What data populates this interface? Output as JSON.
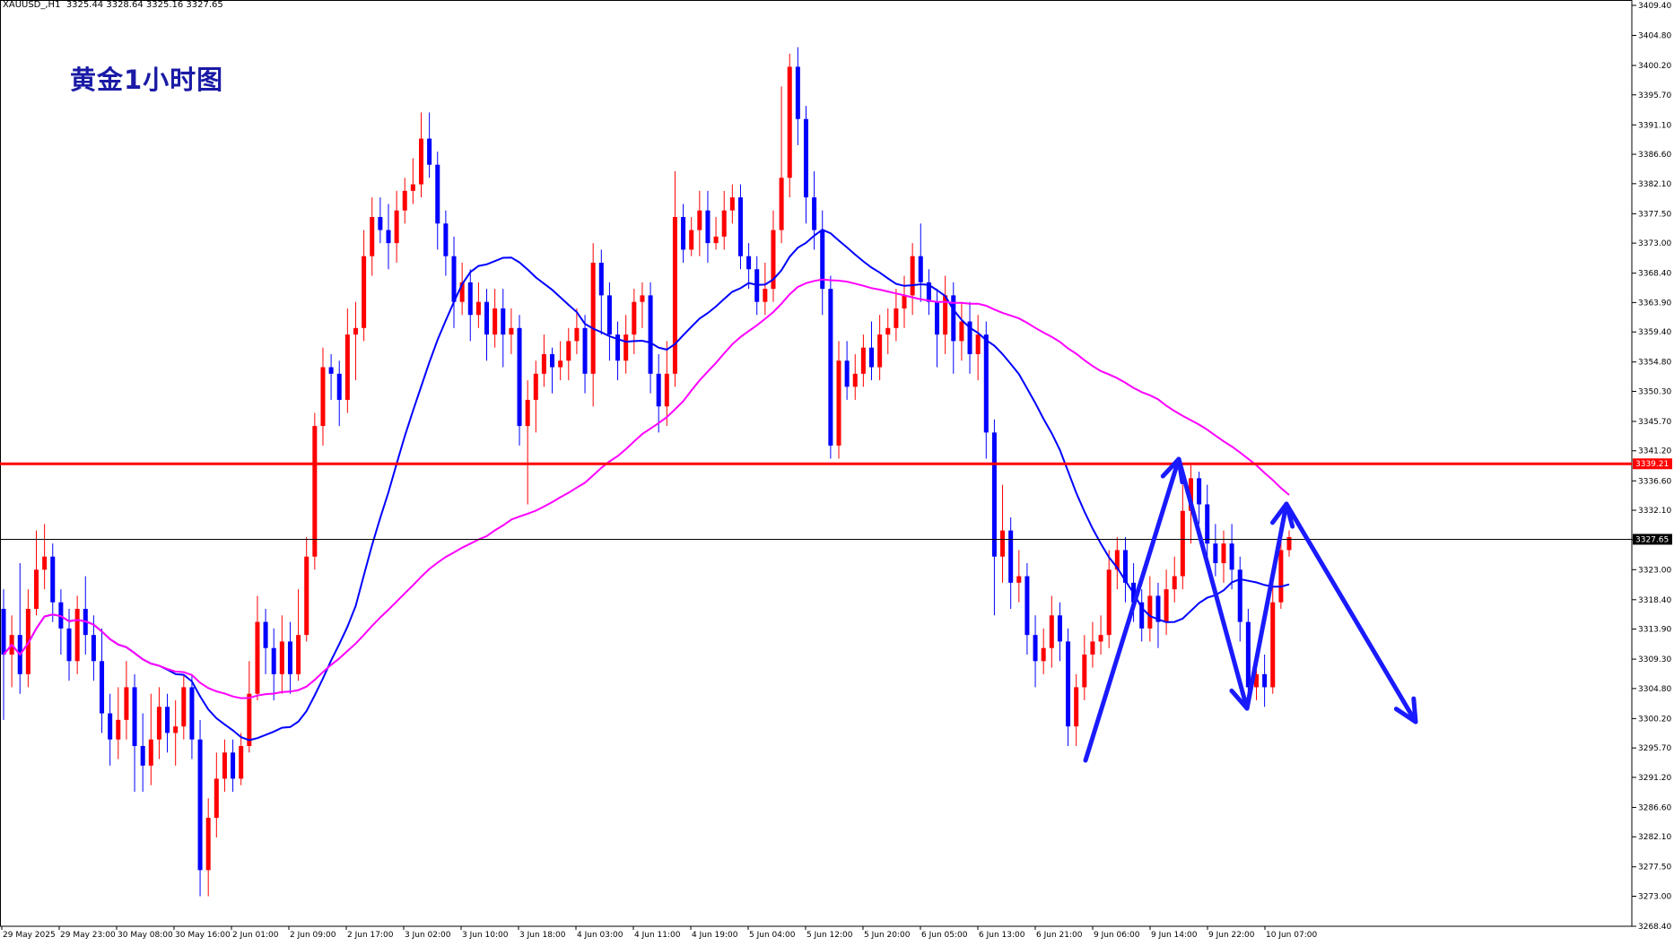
{
  "header": {
    "symbol": "XAUUSD_,H1",
    "ohlc": "3325.44 3328.64 3325.16 3327.65"
  },
  "title": "黄金1小时图",
  "colors": {
    "bull": "#ff0000",
    "bear": "#0000ff",
    "ma_fast": "#0000ff",
    "ma_slow": "#ff00ff",
    "resistance": "#ff0000",
    "current": "#000000",
    "arrows": "#1a1aff",
    "price_tag_bg": "#ff0000",
    "current_tag_bg": "#000000"
  },
  "chart_data": {
    "type": "candlestick",
    "y_ticks": [
      "3409.40",
      "3404.80",
      "3400.20",
      "3395.70",
      "3391.10",
      "3386.60",
      "3382.10",
      "3377.50",
      "3373.00",
      "3368.40",
      "3363.90",
      "3359.40",
      "3354.80",
      "3350.30",
      "3345.70",
      "3341.20",
      "3336.60",
      "3332.10",
      "3327.60",
      "3323.00",
      "3318.40",
      "3313.90",
      "3309.30",
      "3304.80",
      "3300.20",
      "3295.70",
      "3291.20",
      "3286.60",
      "3282.10",
      "3277.50",
      "3273.00",
      "3268.40"
    ],
    "x_ticks": [
      "29 May 2025",
      "29 May 23:00",
      "30 May 08:00",
      "30 May 16:00",
      "2 Jun 01:00",
      "2 Jun 09:00",
      "2 Jun 17:00",
      "3 Jun 02:00",
      "3 Jun 10:00",
      "3 Jun 18:00",
      "4 Jun 03:00",
      "4 Jun 11:00",
      "4 Jun 19:00",
      "5 Jun 04:00",
      "5 Jun 12:00",
      "5 Jun 20:00",
      "6 Jun 05:00",
      "6 Jun 13:00",
      "6 Jun 21:00",
      "9 Jun 06:00",
      "9 Jun 14:00",
      "9 Jun 22:00",
      "10 Jun 07:00"
    ],
    "ylim": [
      3268.4,
      3409.4
    ],
    "resistance_level": 3339.21,
    "resistance_label": "3339.21",
    "current_price": 3327.65,
    "current_label": "3327.65",
    "candles": [
      [
        3317,
        3310,
        3320,
        3300
      ],
      [
        3310,
        3313,
        3316,
        3305
      ],
      [
        3313,
        3307,
        3324,
        3304
      ],
      [
        3307,
        3317,
        3320,
        3305
      ],
      [
        3317,
        3323,
        3329,
        3316
      ],
      [
        3323,
        3325,
        3330,
        3320
      ],
      [
        3325,
        3318,
        3327,
        3315
      ],
      [
        3318,
        3314,
        3320,
        3310
      ],
      [
        3314,
        3309,
        3317,
        3306
      ],
      [
        3309,
        3317,
        3319,
        3307
      ],
      [
        3317,
        3313,
        3322,
        3310
      ],
      [
        3313,
        3309,
        3316,
        3306
      ],
      [
        3309,
        3301,
        3314,
        3298
      ],
      [
        3301,
        3297,
        3304,
        3293
      ],
      [
        3297,
        3300,
        3305,
        3294
      ],
      [
        3300,
        3305,
        3309,
        3297
      ],
      [
        3305,
        3296,
        3307,
        3289
      ],
      [
        3296,
        3293,
        3301,
        3289
      ],
      [
        3293,
        3297,
        3304,
        3290
      ],
      [
        3297,
        3302,
        3305,
        3294
      ],
      [
        3302,
        3298,
        3304,
        3295
      ],
      [
        3298,
        3299,
        3303,
        3293
      ],
      [
        3299,
        3305,
        3307,
        3297
      ],
      [
        3305,
        3297,
        3307,
        3294
      ],
      [
        3297,
        3277,
        3300,
        3273
      ],
      [
        3277,
        3285,
        3288,
        3273
      ],
      [
        3285,
        3291,
        3295,
        3282
      ],
      [
        3291,
        3295,
        3297,
        3289
      ],
      [
        3295,
        3291,
        3297,
        3289
      ],
      [
        3291,
        3296,
        3298,
        3290
      ],
      [
        3296,
        3304,
        3309,
        3295
      ],
      [
        3304,
        3315,
        3319,
        3303
      ],
      [
        3315,
        3311,
        3317,
        3307
      ],
      [
        3311,
        3307,
        3314,
        3303
      ],
      [
        3307,
        3312,
        3316,
        3304
      ],
      [
        3312,
        3307,
        3315,
        3304
      ],
      [
        3307,
        3313,
        3320,
        3306
      ],
      [
        3313,
        3325,
        3328,
        3312
      ],
      [
        3325,
        3345,
        3347,
        3323
      ],
      [
        3345,
        3354,
        3357,
        3342
      ],
      [
        3354,
        3353,
        3356,
        3349
      ],
      [
        3353,
        3349,
        3355,
        3345
      ],
      [
        3349,
        3359,
        3363,
        3347
      ],
      [
        3359,
        3360,
        3364,
        3352
      ],
      [
        3360,
        3371,
        3375,
        3358
      ],
      [
        3371,
        3377,
        3380,
        3368
      ],
      [
        3377,
        3375,
        3380,
        3373
      ],
      [
        3375,
        3373,
        3379,
        3369
      ],
      [
        3373,
        3378,
        3381,
        3370
      ],
      [
        3378,
        3381,
        3383,
        3376
      ],
      [
        3381,
        3382,
        3386,
        3379
      ],
      [
        3382,
        3389,
        3393,
        3380
      ],
      [
        3389,
        3385,
        3393,
        3383
      ],
      [
        3385,
        3376,
        3387,
        3372
      ],
      [
        3376,
        3371,
        3378,
        3368
      ],
      [
        3371,
        3364,
        3374,
        3360
      ],
      [
        3364,
        3367,
        3370,
        3362
      ],
      [
        3367,
        3362,
        3369,
        3358
      ],
      [
        3362,
        3364,
        3367,
        3360
      ],
      [
        3364,
        3359,
        3366,
        3355
      ],
      [
        3359,
        3363,
        3366,
        3357
      ],
      [
        3363,
        3359,
        3366,
        3354
      ],
      [
        3359,
        3360,
        3363,
        3356
      ],
      [
        3360,
        3345,
        3362,
        3342
      ],
      [
        3345,
        3349,
        3352,
        3333
      ],
      [
        3349,
        3353,
        3355,
        3344
      ],
      [
        3353,
        3356,
        3359,
        3351
      ],
      [
        3356,
        3354,
        3357,
        3350
      ],
      [
        3354,
        3355,
        3358,
        3352
      ],
      [
        3355,
        3358,
        3360,
        3352
      ],
      [
        3358,
        3360,
        3363,
        3356
      ],
      [
        3360,
        3353,
        3362,
        3350
      ],
      [
        3353,
        3370,
        3373,
        3348
      ],
      [
        3370,
        3365,
        3372,
        3359
      ],
      [
        3365,
        3359,
        3367,
        3355
      ],
      [
        3359,
        3355,
        3361,
        3352
      ],
      [
        3355,
        3359,
        3362,
        3353
      ],
      [
        3359,
        3364,
        3366,
        3356
      ],
      [
        3364,
        3365,
        3367,
        3360
      ],
      [
        3365,
        3353,
        3367,
        3350
      ],
      [
        3353,
        3348,
        3356,
        3344
      ],
      [
        3348,
        3353,
        3358,
        3345
      ],
      [
        3353,
        3377,
        3384,
        3351
      ],
      [
        3377,
        3372,
        3379,
        3370
      ],
      [
        3372,
        3375,
        3377,
        3371
      ],
      [
        3375,
        3378,
        3381,
        3371
      ],
      [
        3378,
        3373,
        3381,
        3370
      ],
      [
        3373,
        3374,
        3377,
        3372
      ],
      [
        3374,
        3378,
        3381,
        3372
      ],
      [
        3378,
        3380,
        3382,
        3376
      ],
      [
        3380,
        3371,
        3382,
        3369
      ],
      [
        3371,
        3369,
        3373,
        3366
      ],
      [
        3369,
        3364,
        3371,
        3362
      ],
      [
        3364,
        3366,
        3370,
        3362
      ],
      [
        3366,
        3375,
        3378,
        3364
      ],
      [
        3375,
        3383,
        3397,
        3373
      ],
      [
        3383,
        3400,
        3402,
        3380
      ],
      [
        3400,
        3392,
        3403,
        3388
      ],
      [
        3392,
        3380,
        3394,
        3376
      ],
      [
        3380,
        3375,
        3384,
        3372
      ],
      [
        3375,
        3366,
        3378,
        3362
      ],
      [
        3366,
        3342,
        3368,
        3340
      ],
      [
        3342,
        3355,
        3358,
        3340
      ],
      [
        3355,
        3351,
        3358,
        3349
      ],
      [
        3351,
        3353,
        3356,
        3349
      ],
      [
        3353,
        3357,
        3359,
        3351
      ],
      [
        3357,
        3354,
        3361,
        3352
      ],
      [
        3354,
        3359,
        3362,
        3352
      ],
      [
        3359,
        3360,
        3363,
        3356
      ],
      [
        3360,
        3363,
        3366,
        3358
      ],
      [
        3363,
        3365,
        3368,
        3360
      ],
      [
        3365,
        3371,
        3373,
        3362
      ],
      [
        3371,
        3367,
        3376,
        3364
      ],
      [
        3367,
        3364,
        3369,
        3362
      ],
      [
        3364,
        3359,
        3366,
        3354
      ],
      [
        3359,
        3365,
        3368,
        3356
      ],
      [
        3365,
        3358,
        3367,
        3353
      ],
      [
        3358,
        3361,
        3364,
        3355
      ],
      [
        3361,
        3356,
        3364,
        3353
      ],
      [
        3356,
        3359,
        3362,
        3352
      ],
      [
        3359,
        3344,
        3361,
        3340
      ],
      [
        3344,
        3325,
        3346,
        3316
      ],
      [
        3325,
        3329,
        3336,
        3321
      ],
      [
        3329,
        3321,
        3331,
        3317
      ],
      [
        3321,
        3322,
        3326,
        3318
      ],
      [
        3322,
        3313,
        3324,
        3310
      ],
      [
        3313,
        3309,
        3316,
        3305
      ],
      [
        3309,
        3311,
        3314,
        3307
      ],
      [
        3311,
        3316,
        3319,
        3308
      ],
      [
        3316,
        3312,
        3318,
        3309
      ],
      [
        3312,
        3299,
        3314,
        3296
      ],
      [
        3299,
        3305,
        3307,
        3296
      ],
      [
        3305,
        3310,
        3313,
        3303
      ],
      [
        3310,
        3312,
        3315,
        3308
      ],
      [
        3312,
        3313,
        3316,
        3310
      ],
      [
        3313,
        3323,
        3326,
        3311
      ],
      [
        3323,
        3326,
        3328,
        3320
      ],
      [
        3326,
        3321,
        3328,
        3318
      ],
      [
        3321,
        3318,
        3324,
        3315
      ],
      [
        3318,
        3314,
        3320,
        3312
      ],
      [
        3314,
        3319,
        3322,
        3312
      ],
      [
        3319,
        3315,
        3321,
        3311
      ],
      [
        3315,
        3320,
        3323,
        3313
      ],
      [
        3320,
        3322,
        3325,
        3318
      ],
      [
        3322,
        3332,
        3336,
        3320
      ],
      [
        3332,
        3337,
        3339,
        3327
      ],
      [
        3337,
        3333,
        3338,
        3330
      ],
      [
        3333,
        3327,
        3336,
        3325
      ],
      [
        3327,
        3324,
        3330,
        3322
      ],
      [
        3324,
        3327,
        3329,
        3321
      ],
      [
        3327,
        3323,
        3330,
        3320
      ],
      [
        3323,
        3315,
        3325,
        3312
      ],
      [
        3315,
        3305,
        3317,
        3302
      ],
      [
        3305,
        3307,
        3310,
        3303
      ],
      [
        3307,
        3305,
        3310,
        3302
      ],
      [
        3305,
        3318,
        3321,
        3304
      ],
      [
        3318,
        3326,
        3330,
        3317
      ],
      [
        3326,
        3328,
        3329,
        3325
      ]
    ]
  }
}
